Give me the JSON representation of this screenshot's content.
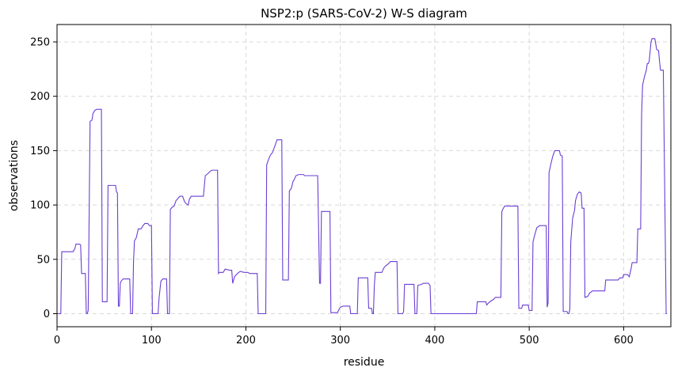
{
  "chart_data": {
    "type": "line",
    "title": "NSP2:p (SARS-CoV-2) W-S diagram",
    "xlabel": "residue",
    "ylabel": "observations",
    "xlim": [
      0,
      650
    ],
    "ylim": [
      -12,
      266
    ],
    "x_ticks": [
      0,
      100,
      200,
      300,
      400,
      500,
      600
    ],
    "y_ticks": [
      0,
      50,
      100,
      150,
      200,
      250
    ],
    "grid": true,
    "line_color": "#6a3fd4",
    "series": [
      {
        "name": "",
        "points": [
          [
            0,
            0
          ],
          [
            4,
            0
          ],
          [
            5,
            57
          ],
          [
            17,
            57
          ],
          [
            19,
            60
          ],
          [
            20,
            64
          ],
          [
            24,
            64
          ],
          [
            25,
            63
          ],
          [
            26,
            37
          ],
          [
            30,
            37
          ],
          [
            31,
            0
          ],
          [
            32,
            0
          ],
          [
            33,
            3
          ],
          [
            35,
            177
          ],
          [
            37,
            178
          ],
          [
            38,
            184
          ],
          [
            40,
            187
          ],
          [
            42,
            188
          ],
          [
            45,
            188
          ],
          [
            46,
            188
          ],
          [
            47,
            188
          ],
          [
            48,
            11
          ],
          [
            53,
            11
          ],
          [
            54,
            118
          ],
          [
            62,
            118
          ],
          [
            63,
            112
          ],
          [
            64,
            111
          ],
          [
            65,
            7
          ],
          [
            66,
            7
          ],
          [
            67,
            28
          ],
          [
            68,
            30
          ],
          [
            70,
            32
          ],
          [
            76,
            32
          ],
          [
            77,
            32
          ],
          [
            78,
            0
          ],
          [
            80,
            0
          ],
          [
            81,
            48
          ],
          [
            82,
            67
          ],
          [
            84,
            70
          ],
          [
            86,
            78
          ],
          [
            89,
            78
          ],
          [
            91,
            81
          ],
          [
            93,
            83
          ],
          [
            96,
            83
          ],
          [
            98,
            81
          ],
          [
            100,
            81
          ],
          [
            101,
            0
          ],
          [
            107,
            0
          ],
          [
            108,
            14
          ],
          [
            110,
            30
          ],
          [
            112,
            32
          ],
          [
            116,
            32
          ],
          [
            117,
            0
          ],
          [
            119,
            0
          ],
          [
            120,
            96
          ],
          [
            122,
            98
          ],
          [
            124,
            99
          ],
          [
            126,
            104
          ],
          [
            128,
            106
          ],
          [
            130,
            108
          ],
          [
            133,
            108
          ],
          [
            135,
            103
          ],
          [
            137,
            101
          ],
          [
            139,
            100
          ],
          [
            140,
            105
          ],
          [
            142,
            108
          ],
          [
            155,
            108
          ],
          [
            157,
            127
          ],
          [
            160,
            129
          ],
          [
            162,
            131
          ],
          [
            164,
            132
          ],
          [
            169,
            132
          ],
          [
            170,
            132
          ],
          [
            171,
            37
          ],
          [
            172,
            38
          ],
          [
            176,
            38
          ],
          [
            178,
            41
          ],
          [
            183,
            40
          ],
          [
            185,
            40
          ],
          [
            186,
            28
          ],
          [
            188,
            34
          ],
          [
            191,
            37
          ],
          [
            194,
            39
          ],
          [
            198,
            38
          ],
          [
            202,
            38
          ],
          [
            204,
            37
          ],
          [
            212,
            37
          ],
          [
            213,
            0
          ],
          [
            221,
            0
          ],
          [
            222,
            137
          ],
          [
            224,
            142
          ],
          [
            226,
            146
          ],
          [
            228,
            148
          ],
          [
            231,
            155
          ],
          [
            233,
            160
          ],
          [
            238,
            160
          ],
          [
            239,
            31
          ],
          [
            245,
            31
          ],
          [
            246,
            113
          ],
          [
            248,
            115
          ],
          [
            250,
            122
          ],
          [
            251,
            123
          ],
          [
            253,
            127
          ],
          [
            256,
            128
          ],
          [
            261,
            128
          ],
          [
            262,
            127
          ],
          [
            276,
            127
          ],
          [
            278,
            28
          ],
          [
            279,
            28
          ],
          [
            280,
            94
          ],
          [
            289,
            94
          ],
          [
            290,
            1
          ],
          [
            297,
            1
          ],
          [
            298,
            3
          ],
          [
            300,
            6
          ],
          [
            303,
            7
          ],
          [
            310,
            7
          ],
          [
            311,
            0
          ],
          [
            318,
            0
          ],
          [
            319,
            33
          ],
          [
            329,
            33
          ],
          [
            330,
            5
          ],
          [
            333,
            5
          ],
          [
            334,
            0
          ],
          [
            335,
            0
          ],
          [
            336,
            26
          ],
          [
            337,
            38
          ],
          [
            344,
            38
          ],
          [
            346,
            42
          ],
          [
            348,
            44
          ],
          [
            351,
            46
          ],
          [
            353,
            48
          ],
          [
            360,
            48
          ],
          [
            361,
            0
          ],
          [
            366,
            0
          ],
          [
            367,
            2
          ],
          [
            368,
            27
          ],
          [
            378,
            27
          ],
          [
            379,
            0
          ],
          [
            381,
            0
          ],
          [
            382,
            26
          ],
          [
            386,
            27
          ],
          [
            388,
            28
          ],
          [
            393,
            28
          ],
          [
            395,
            26
          ],
          [
            396,
            0
          ],
          [
            444,
            0
          ],
          [
            445,
            11
          ],
          [
            454,
            11
          ],
          [
            455,
            8
          ],
          [
            457,
            10
          ],
          [
            460,
            12
          ],
          [
            462,
            13
          ],
          [
            464,
            15
          ],
          [
            470,
            15
          ],
          [
            471,
            94
          ],
          [
            472,
            96
          ],
          [
            474,
            99
          ],
          [
            488,
            99
          ],
          [
            489,
            5
          ],
          [
            492,
            5
          ],
          [
            493,
            8
          ],
          [
            499,
            8
          ],
          [
            500,
            3
          ],
          [
            503,
            3
          ],
          [
            504,
            66
          ],
          [
            506,
            73
          ],
          [
            508,
            79
          ],
          [
            511,
            81
          ],
          [
            518,
            81
          ],
          [
            519,
            6
          ],
          [
            520,
            10
          ],
          [
            521,
            130
          ],
          [
            523,
            138
          ],
          [
            525,
            145
          ],
          [
            527,
            150
          ],
          [
            532,
            150
          ],
          [
            533,
            146
          ],
          [
            535,
            145
          ],
          [
            536,
            2
          ],
          [
            540,
            2
          ],
          [
            541,
            0
          ],
          [
            542,
            0
          ],
          [
            543,
            4
          ],
          [
            544,
            66
          ],
          [
            546,
            88
          ],
          [
            548,
            95
          ],
          [
            549,
            104
          ],
          [
            551,
            110
          ],
          [
            553,
            112
          ],
          [
            555,
            111
          ],
          [
            556,
            97
          ],
          [
            558,
            97
          ],
          [
            559,
            15
          ],
          [
            562,
            16
          ],
          [
            564,
            19
          ],
          [
            567,
            21
          ],
          [
            580,
            21
          ],
          [
            581,
            31
          ],
          [
            594,
            31
          ],
          [
            596,
            33
          ],
          [
            599,
            33
          ],
          [
            600,
            36
          ],
          [
            604,
            36
          ],
          [
            605,
            35
          ],
          [
            606,
            34
          ],
          [
            608,
            42
          ],
          [
            609,
            47
          ],
          [
            614,
            47
          ],
          [
            615,
            78
          ],
          [
            618,
            78
          ],
          [
            619,
            183
          ],
          [
            620,
            210
          ],
          [
            622,
            218
          ],
          [
            624,
            224
          ],
          [
            625,
            230
          ],
          [
            626,
            230
          ],
          [
            627,
            232
          ],
          [
            629,
            250
          ],
          [
            630,
            253
          ],
          [
            633,
            253
          ],
          [
            634,
            248
          ],
          [
            635,
            243
          ],
          [
            637,
            242
          ],
          [
            638,
            232
          ],
          [
            639,
            224
          ],
          [
            641,
            224
          ],
          [
            642,
            224
          ],
          [
            645,
            0
          ],
          [
            646,
            0
          ]
        ]
      }
    ]
  }
}
